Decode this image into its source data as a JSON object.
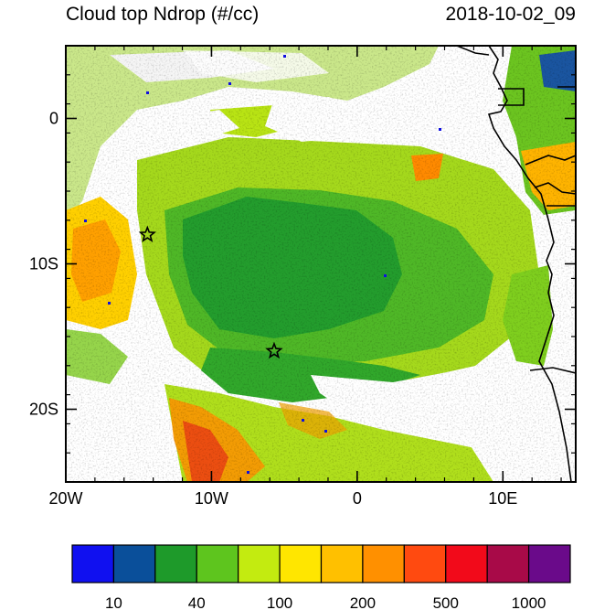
{
  "title": {
    "left": "Cloud top Ndrop (#/cc)",
    "right": "2018-10-02_09"
  },
  "map": {
    "projection": "lat-lon",
    "lon_range": [
      -20,
      15
    ],
    "lat_range": [
      -25,
      5
    ],
    "x_ticks": [
      {
        "lon": -20,
        "label": "20W"
      },
      {
        "lon": -10,
        "label": "10W"
      },
      {
        "lon": 0,
        "label": "0"
      },
      {
        "lon": 10,
        "label": "10E"
      }
    ],
    "y_ticks": [
      {
        "lat": 0,
        "label": "0"
      },
      {
        "lat": -10,
        "label": "10S"
      },
      {
        "lat": -20,
        "label": "20S"
      }
    ],
    "markers": [
      {
        "type": "star",
        "lon": -14.4,
        "lat": -8.0
      },
      {
        "type": "star",
        "lon": -5.7,
        "lat": -16.0
      }
    ]
  },
  "colorbar": {
    "colors": [
      "#1010f0",
      "#0a4f9a",
      "#1e9a2a",
      "#5ec51e",
      "#c3eb10",
      "#ffe600",
      "#ffc000",
      "#ff9000",
      "#ff4a10",
      "#f20a1a",
      "#a80a48",
      "#6a0a8a"
    ],
    "labels": [
      {
        "after_box": 1,
        "text": "10"
      },
      {
        "after_box": 3,
        "text": "40"
      },
      {
        "after_box": 5,
        "text": "100"
      },
      {
        "after_box": 7,
        "text": "200"
      },
      {
        "after_box": 9,
        "text": "500"
      },
      {
        "after_box": 11,
        "text": "1000"
      }
    ]
  }
}
